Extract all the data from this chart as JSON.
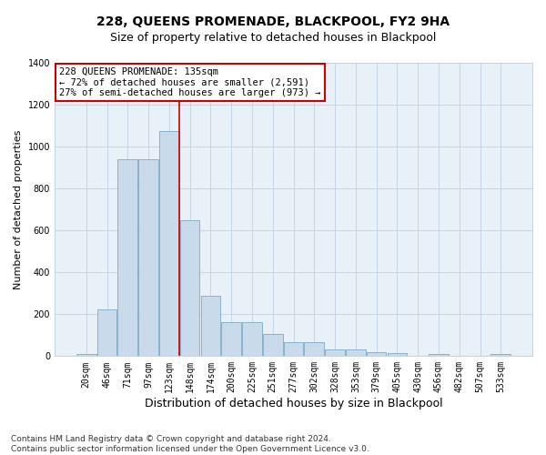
{
  "title": "228, QUEENS PROMENADE, BLACKPOOL, FY2 9HA",
  "subtitle": "Size of property relative to detached houses in Blackpool",
  "xlabel": "Distribution of detached houses by size in Blackpool",
  "ylabel": "Number of detached properties",
  "categories": [
    "20sqm",
    "46sqm",
    "71sqm",
    "97sqm",
    "123sqm",
    "148sqm",
    "174sqm",
    "200sqm",
    "225sqm",
    "251sqm",
    "277sqm",
    "302sqm",
    "328sqm",
    "353sqm",
    "379sqm",
    "405sqm",
    "430sqm",
    "456sqm",
    "482sqm",
    "507sqm",
    "533sqm"
  ],
  "values": [
    10,
    225,
    940,
    940,
    1075,
    650,
    290,
    160,
    160,
    105,
    65,
    65,
    30,
    30,
    20,
    15,
    0,
    10,
    0,
    0,
    10
  ],
  "bar_color": "#c9daea",
  "bar_edge_color": "#7aaac8",
  "background_color": "#ffffff",
  "plot_bg_color": "#e8f0f8",
  "grid_color": "#c5d5e5",
  "vline_color": "#cc0000",
  "vline_x_idx": 4,
  "annotation_text": "228 QUEENS PROMENADE: 135sqm\n← 72% of detached houses are smaller (2,591)\n27% of semi-detached houses are larger (973) →",
  "annotation_box_color": "#ffffff",
  "annotation_box_edgecolor": "#cc0000",
  "ylim": [
    0,
    1400
  ],
  "yticks": [
    0,
    200,
    400,
    600,
    800,
    1000,
    1200,
    1400
  ],
  "footnote": "Contains HM Land Registry data © Crown copyright and database right 2024.\nContains public sector information licensed under the Open Government Licence v3.0.",
  "title_fontsize": 10,
  "subtitle_fontsize": 9,
  "xlabel_fontsize": 9,
  "ylabel_fontsize": 8,
  "tick_fontsize": 7,
  "annotation_fontsize": 7.5,
  "footnote_fontsize": 6.5
}
